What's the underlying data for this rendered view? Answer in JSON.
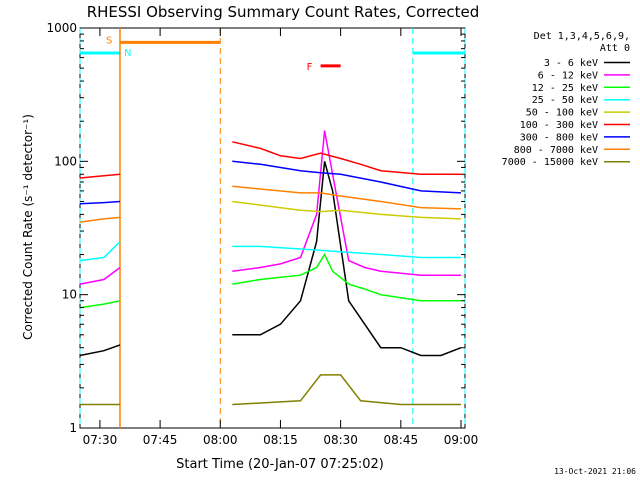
{
  "chart_data": {
    "type": "line",
    "title": "RHESSI Observing Summary Count Rates, Corrected",
    "xlabel": "Start Time (20-Jan-07 07:25:02)",
    "ylabel": "Corrected Count Rate (s⁻¹ detector⁻¹)",
    "yscale": "log",
    "ylim": [
      1,
      1000
    ],
    "xlim": [
      "07:25:02",
      "09:01:00"
    ],
    "x_ticks": [
      "07:30",
      "07:45",
      "08:00",
      "08:15",
      "08:30",
      "08:45",
      "09:00"
    ],
    "y_ticks": [
      "1",
      "10",
      "100",
      "1000"
    ],
    "footer": "13-Oct-2021 21:06",
    "legend": {
      "header": [
        "Det 1,3,4,5,6,9,",
        "Att 0"
      ],
      "position": "right"
    },
    "series": [
      {
        "name": "3 - 6 keV",
        "color": "#000000",
        "segments": [
          {
            "x": [
              "07:25",
              "07:31",
              "07:35"
            ],
            "y": [
              3.5,
              3.8,
              4.2
            ]
          },
          {
            "x": [
              "08:03",
              "08:10",
              "08:15",
              "08:20",
              "08:24",
              "08:26",
              "08:28",
              "08:32",
              "08:36",
              "08:40",
              "08:45",
              "08:50",
              "08:55",
              "09:00"
            ],
            "y": [
              5,
              5,
              6,
              9,
              25,
              100,
              60,
              9,
              6,
              4,
              4,
              3.5,
              3.5,
              4
            ]
          }
        ]
      },
      {
        "name": "6 - 12 keV",
        "color": "#ff00ff",
        "segments": [
          {
            "x": [
              "07:25",
              "07:31",
              "07:35"
            ],
            "y": [
              12,
              13,
              16
            ]
          },
          {
            "x": [
              "08:03",
              "08:10",
              "08:15",
              "08:20",
              "08:24",
              "08:26",
              "08:28",
              "08:32",
              "08:36",
              "08:40",
              "08:50",
              "09:00"
            ],
            "y": [
              15,
              16,
              17,
              19,
              40,
              170,
              80,
              18,
              16,
              15,
              14,
              14
            ]
          }
        ]
      },
      {
        "name": "12 - 25 keV",
        "color": "#00ff00",
        "segments": [
          {
            "x": [
              "07:25",
              "07:31",
              "07:35"
            ],
            "y": [
              8,
              8.5,
              9
            ]
          },
          {
            "x": [
              "08:03",
              "08:10",
              "08:15",
              "08:20",
              "08:24",
              "08:26",
              "08:28",
              "08:32",
              "08:36",
              "08:40",
              "08:50",
              "09:00"
            ],
            "y": [
              12,
              13,
              13.5,
              14,
              16,
              20,
              15,
              12,
              11,
              10,
              9,
              9
            ]
          }
        ]
      },
      {
        "name": "25 - 50 keV",
        "color": "#00ffff",
        "segments": [
          {
            "x": [
              "07:25",
              "07:31",
              "07:35"
            ],
            "y": [
              18,
              19,
              25
            ]
          },
          {
            "x": [
              "08:03",
              "08:10",
              "08:20",
              "08:30",
              "08:40",
              "08:50",
              "09:00"
            ],
            "y": [
              23,
              23,
              22,
              21,
              20,
              19,
              19
            ]
          }
        ]
      },
      {
        "name": "50 - 100 keV",
        "color": "#cccc00",
        "segments": [
          {
            "x": [
              "08:03",
              "08:10",
              "08:20",
              "08:25",
              "08:30",
              "08:40",
              "08:50",
              "09:00"
            ],
            "y": [
              50,
              47,
              43,
              42,
              43,
              40,
              38,
              37
            ]
          }
        ]
      },
      {
        "name": "100 - 300 keV",
        "color": "#ff0000",
        "segments": [
          {
            "x": [
              "07:25",
              "07:31",
              "07:35"
            ],
            "y": [
              75,
              78,
              80
            ]
          },
          {
            "x": [
              "08:03",
              "08:10",
              "08:15",
              "08:20",
              "08:25",
              "08:30",
              "08:35",
              "08:40",
              "08:50",
              "09:00"
            ],
            "y": [
              140,
              125,
              110,
              105,
              115,
              105,
              95,
              85,
              80,
              80
            ]
          }
        ]
      },
      {
        "name": "300 - 800 keV",
        "color": "#0000ff",
        "segments": [
          {
            "x": [
              "07:25",
              "07:31",
              "07:35"
            ],
            "y": [
              48,
              49,
              50
            ]
          },
          {
            "x": [
              "08:03",
              "08:10",
              "08:20",
              "08:25",
              "08:30",
              "08:40",
              "08:50",
              "09:00"
            ],
            "y": [
              100,
              95,
              85,
              82,
              80,
              70,
              60,
              58
            ]
          }
        ]
      },
      {
        "name": "800 - 7000 keV",
        "color": "#ff8000",
        "segments": [
          {
            "x": [
              "07:25",
              "07:31",
              "07:35"
            ],
            "y": [
              35,
              37,
              38
            ]
          },
          {
            "x": [
              "08:03",
              "08:10",
              "08:20",
              "08:25",
              "08:30",
              "08:40",
              "08:50",
              "09:00"
            ],
            "y": [
              65,
              62,
              58,
              58,
              55,
              50,
              45,
              44
            ]
          }
        ]
      },
      {
        "name": "7000 - 15000 keV",
        "color": "#808000",
        "segments": [
          {
            "x": [
              "07:25",
              "07:35"
            ],
            "y": [
              1.5,
              1.5
            ]
          },
          {
            "x": [
              "08:03",
              "08:20",
              "08:25",
              "08:30",
              "08:35",
              "08:45",
              "09:00"
            ],
            "y": [
              1.5,
              1.6,
              2.5,
              2.5,
              1.6,
              1.5,
              1.5
            ]
          }
        ]
      }
    ],
    "annotations": {
      "night_bars": [
        {
          "label": "N",
          "start": "07:25:02",
          "end": "07:35:00",
          "color": "#00ffff"
        },
        {
          "label": "N",
          "start": "08:48:00",
          "end": "09:01:00",
          "color": "#00ffff"
        }
      ],
      "saa_bar": {
        "label": "S",
        "start": "07:35:00",
        "end": "08:00:00",
        "color": "#ff8000"
      },
      "flare_bar": {
        "label": "F",
        "start": "08:25:00",
        "end": "08:30:00",
        "color": "#ff0000"
      }
    }
  }
}
